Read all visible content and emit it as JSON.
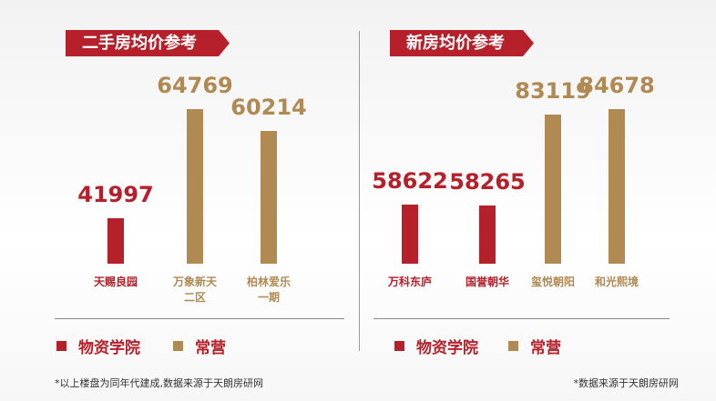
{
  "chart_data": [
    {
      "type": "bar",
      "title": "二手房均价参考",
      "categories": [
        "天赐良园",
        "万象新天\n二区",
        "柏林爱乐\n一期"
      ],
      "series": [
        {
          "name": "物资学院",
          "color": "#b5202a",
          "values": [
            41997,
            null,
            null
          ]
        },
        {
          "name": "常营",
          "color": "#b08a52",
          "values": [
            null,
            64769,
            60214
          ]
        }
      ],
      "note": "*以上楼盘为同年代建成,数据来源于天朗房研网"
    },
    {
      "type": "bar",
      "title": "新房均价参考",
      "categories": [
        "万科东庐",
        "国誉朝华",
        "玺悦朝阳",
        "和光熙境"
      ],
      "series": [
        {
          "name": "物资学院",
          "color": "#b5202a",
          "values": [
            58622,
            58265,
            null,
            null
          ]
        },
        {
          "name": "常营",
          "color": "#b08a52",
          "values": [
            null,
            null,
            83119,
            84678
          ]
        }
      ],
      "note": "*数据来源于天朗房研网"
    }
  ]
}
